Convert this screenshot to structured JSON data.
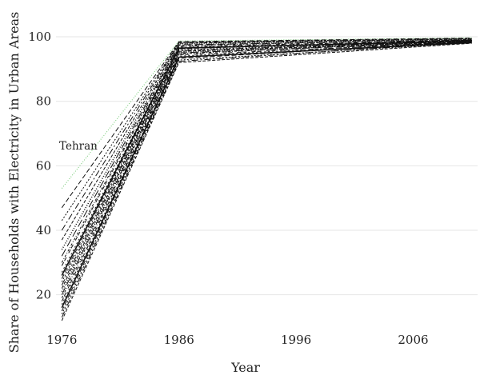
{
  "chart_data": {
    "type": "line",
    "xlabel": "Year",
    "ylabel": "Share of Households with Electricity in Urban Areas",
    "x": [
      1976,
      1986,
      2011
    ],
    "xlim": [
      1975.5,
      2011.5
    ],
    "ylim": [
      10.5,
      101.5
    ],
    "xticks": [
      "1976",
      "1986",
      "1996",
      "2006"
    ],
    "yticks": [
      "20",
      "40",
      "60",
      "80",
      "100"
    ],
    "grid": "horizontal",
    "annotation": "Tehran",
    "highlight_color": "#7ccd7c",
    "line_color": "#111111",
    "series": [
      {
        "values": [
          53,
          98.7,
          99.7
        ],
        "highlight": true
      },
      {
        "values": [
          47,
          98.5,
          99.6
        ]
      },
      {
        "values": [
          43,
          98.3,
          99.5
        ]
      },
      {
        "values": [
          40,
          98.2,
          99.4
        ]
      },
      {
        "values": [
          37,
          98.0,
          99.3
        ]
      },
      {
        "values": [
          34,
          97.8,
          99.2
        ]
      },
      {
        "values": [
          32,
          97.5,
          99.0
        ]
      },
      {
        "values": [
          30,
          97.3,
          99.1
        ]
      },
      {
        "values": [
          29,
          97.0,
          98.9
        ]
      },
      {
        "values": [
          27,
          96.8,
          98.8
        ]
      },
      {
        "values": [
          26,
          96.5,
          98.7
        ]
      },
      {
        "values": [
          25,
          96.3,
          99.0
        ]
      },
      {
        "values": [
          24,
          96.0,
          98.6
        ]
      },
      {
        "values": [
          23,
          95.7,
          98.8
        ]
      },
      {
        "values": [
          22,
          95.5,
          98.5
        ]
      },
      {
        "values": [
          21,
          95.2,
          98.7
        ]
      },
      {
        "values": [
          20,
          95.0,
          98.4
        ]
      },
      {
        "values": [
          19,
          94.7,
          98.9
        ]
      },
      {
        "values": [
          18,
          94.4,
          98.3
        ]
      },
      {
        "values": [
          17,
          94.0,
          98.6
        ]
      },
      {
        "values": [
          16,
          93.7,
          98.2
        ]
      },
      {
        "values": [
          15,
          93.3,
          98.5
        ]
      },
      {
        "values": [
          14,
          92.8,
          98.1
        ]
      },
      {
        "values": [
          13,
          92.4,
          98.4
        ]
      },
      {
        "values": [
          12,
          92.0,
          98.0
        ]
      }
    ]
  }
}
